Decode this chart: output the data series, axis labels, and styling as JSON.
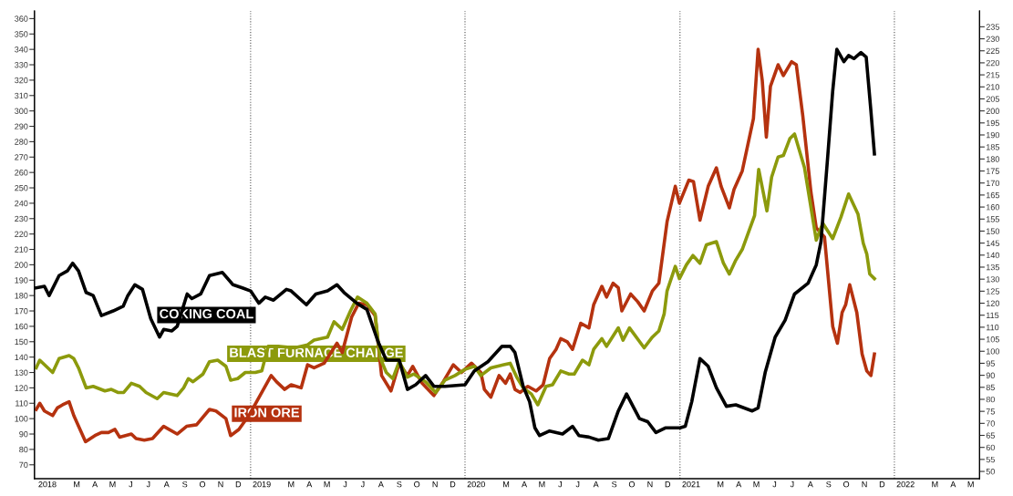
{
  "chart_data": {
    "type": "line",
    "xlim": [
      "2017-12-29",
      "2022-05-26"
    ],
    "xticks": [
      {
        "value": "2018-01-20",
        "label": "2018"
      },
      {
        "value": "2018-03-11",
        "label": "M"
      },
      {
        "value": "2018-04-11",
        "label": "A"
      },
      {
        "value": "2018-05-11",
        "label": "M"
      },
      {
        "value": "2018-06-11",
        "label": "J"
      },
      {
        "value": "2018-07-11",
        "label": "J"
      },
      {
        "value": "2018-08-11",
        "label": "A"
      },
      {
        "value": "2018-09-11",
        "label": "S"
      },
      {
        "value": "2018-10-11",
        "label": "O"
      },
      {
        "value": "2018-11-11",
        "label": "N"
      },
      {
        "value": "2018-12-11",
        "label": "D"
      },
      {
        "value": "2019-01-20",
        "label": "2019"
      },
      {
        "value": "2019-03-11",
        "label": "M"
      },
      {
        "value": "2019-04-11",
        "label": "A"
      },
      {
        "value": "2019-05-11",
        "label": "M"
      },
      {
        "value": "2019-06-11",
        "label": "J"
      },
      {
        "value": "2019-07-11",
        "label": "J"
      },
      {
        "value": "2019-08-11",
        "label": "A"
      },
      {
        "value": "2019-09-11",
        "label": "S"
      },
      {
        "value": "2019-10-11",
        "label": "O"
      },
      {
        "value": "2019-11-11",
        "label": "N"
      },
      {
        "value": "2019-12-11",
        "label": "D"
      },
      {
        "value": "2020-01-20",
        "label": "2020"
      },
      {
        "value": "2020-03-11",
        "label": "M"
      },
      {
        "value": "2020-04-11",
        "label": "A"
      },
      {
        "value": "2020-05-11",
        "label": "M"
      },
      {
        "value": "2020-06-11",
        "label": "J"
      },
      {
        "value": "2020-07-11",
        "label": "J"
      },
      {
        "value": "2020-08-11",
        "label": "A"
      },
      {
        "value": "2020-09-11",
        "label": "S"
      },
      {
        "value": "2020-10-11",
        "label": "O"
      },
      {
        "value": "2020-11-11",
        "label": "N"
      },
      {
        "value": "2020-12-11",
        "label": "D"
      },
      {
        "value": "2021-01-20",
        "label": "2021"
      },
      {
        "value": "2021-03-11",
        "label": "M"
      },
      {
        "value": "2021-04-11",
        "label": "A"
      },
      {
        "value": "2021-05-11",
        "label": "M"
      },
      {
        "value": "2021-06-11",
        "label": "J"
      },
      {
        "value": "2021-07-11",
        "label": "J"
      },
      {
        "value": "2021-08-11",
        "label": "A"
      },
      {
        "value": "2021-09-11",
        "label": "S"
      },
      {
        "value": "2021-10-11",
        "label": "O"
      },
      {
        "value": "2021-11-11",
        "label": "N"
      },
      {
        "value": "2021-12-11",
        "label": "D"
      },
      {
        "value": "2022-01-20",
        "label": "2022"
      },
      {
        "value": "2022-03-11",
        "label": "M"
      },
      {
        "value": "2022-04-11",
        "label": "A"
      },
      {
        "value": "2022-05-11",
        "label": "M"
      }
    ],
    "ylim": [
      61,
      365
    ],
    "yticks": [
      70,
      80,
      90,
      100,
      110,
      120,
      130,
      140,
      150,
      160,
      170,
      180,
      190,
      200,
      210,
      220,
      230,
      240,
      250,
      260,
      270,
      280,
      290,
      300,
      310,
      320,
      330,
      340,
      350,
      360
    ],
    "y2lim": [
      47,
      241.6
    ],
    "y2ticks": [
      50,
      55,
      60,
      65,
      70,
      75,
      80,
      85,
      90,
      95,
      100,
      105,
      110,
      115,
      120,
      125,
      130,
      135,
      140,
      145,
      150,
      155,
      160,
      165,
      170,
      175,
      180,
      185,
      190,
      195,
      200,
      205,
      210,
      215,
      220,
      225,
      230,
      235
    ],
    "grid": false,
    "legend": false,
    "marker": "none",
    "line_style": "solid",
    "ref_lines": [
      {
        "axis": "x",
        "value": "2019-01-01",
        "color": "#555555",
        "line_style": "dotted"
      },
      {
        "axis": "x",
        "value": "2020-01-01",
        "color": "#555555",
        "line_style": "dotted"
      },
      {
        "axis": "x",
        "value": "2021-01-01",
        "color": "#555555",
        "line_style": "dotted"
      },
      {
        "axis": "x",
        "value": "2022-01-01",
        "color": "#555555",
        "line_style": "dotted"
      }
    ],
    "series": [
      {
        "name": "COKING COAL",
        "color": "#000000",
        "x": [
          "2018-01-01",
          "2018-01-15",
          "2018-01-23",
          "2018-02-09",
          "2018-02-23",
          "2018-03-04",
          "2018-03-14",
          "2018-03-27",
          "2018-04-08",
          "2018-04-22",
          "2018-05-12",
          "2018-05-29",
          "2018-06-06",
          "2018-06-18",
          "2018-07-01",
          "2018-07-15",
          "2018-07-30",
          "2018-08-06",
          "2018-08-20",
          "2018-08-29",
          "2018-09-15",
          "2018-09-23",
          "2018-10-08",
          "2018-10-23",
          "2018-11-14",
          "2018-12-02",
          "2018-12-18",
          "2019-01-01",
          "2019-01-15",
          "2019-01-26",
          "2019-02-09",
          "2019-03-03",
          "2019-03-11",
          "2019-04-06",
          "2019-04-22",
          "2019-05-12",
          "2019-05-28",
          "2019-06-09",
          "2019-07-01",
          "2019-07-18",
          "2019-08-06",
          "2019-08-20",
          "2019-09-11",
          "2019-09-25",
          "2019-10-09",
          "2019-10-26",
          "2019-11-09",
          "2019-11-28",
          "2020-01-01",
          "2020-01-17",
          "2020-02-09",
          "2020-03-04",
          "2020-03-18",
          "2020-03-26",
          "2020-04-09",
          "2020-04-20",
          "2020-04-29",
          "2020-05-07",
          "2020-05-24",
          "2020-06-15",
          "2020-07-02",
          "2020-07-13",
          "2020-07-30",
          "2020-08-15",
          "2020-09-01",
          "2020-09-18",
          "2020-10-02",
          "2020-10-24",
          "2020-11-07",
          "2020-11-21",
          "2020-12-07",
          "2021-01-01",
          "2021-01-10",
          "2021-01-21",
          "2021-02-04",
          "2021-02-18",
          "2021-03-04",
          "2021-03-21",
          "2021-04-06",
          "2021-05-04",
          "2021-05-14",
          "2021-05-26",
          "2021-06-12",
          "2021-06-29",
          "2021-07-15",
          "2021-08-07",
          "2021-08-21",
          "2021-08-29",
          "2021-09-09",
          "2021-09-18",
          "2021-09-25",
          "2021-10-07",
          "2021-10-15",
          "2021-10-24",
          "2021-11-05",
          "2021-11-14",
          "2021-11-22",
          "2021-11-28"
        ],
        "values": [
          185,
          186,
          180,
          193,
          196,
          201,
          196,
          182,
          180,
          167,
          170,
          173,
          180,
          187,
          184,
          165,
          153,
          158,
          157,
          160,
          181,
          178,
          181,
          193,
          195,
          187,
          185,
          183,
          175,
          179,
          177,
          184,
          183,
          174,
          181,
          183,
          187,
          182,
          175,
          171,
          150,
          138,
          138,
          119,
          122,
          128,
          121,
          121,
          122,
          131,
          137,
          147,
          147,
          143,
          121,
          111,
          94,
          89,
          92,
          90,
          95,
          89,
          88,
          86,
          87,
          105,
          116,
          100,
          98,
          91,
          94,
          94,
          95,
          111,
          139,
          134,
          120,
          108,
          109,
          105,
          107,
          130,
          153,
          164,
          181,
          188,
          200,
          215,
          268,
          313,
          340,
          332,
          336,
          334,
          338,
          335,
          300,
          272
        ]
      },
      {
        "name": "BLAST FURNACE CHARGE",
        "color": "#8c9a0c",
        "x": [
          "2018-01-01",
          "2018-01-07",
          "2018-01-18",
          "2018-01-29",
          "2018-02-09",
          "2018-02-26",
          "2018-03-06",
          "2018-03-14",
          "2018-03-27",
          "2018-04-08",
          "2018-04-28",
          "2018-05-09",
          "2018-05-20",
          "2018-05-30",
          "2018-06-12",
          "2018-06-26",
          "2018-07-07",
          "2018-07-26",
          "2018-08-06",
          "2018-08-29",
          "2018-09-09",
          "2018-09-17",
          "2018-09-25",
          "2018-10-12",
          "2018-10-23",
          "2018-11-06",
          "2018-11-20",
          "2018-11-28",
          "2018-12-10",
          "2018-12-23",
          "2019-01-09",
          "2019-01-20",
          "2019-01-31",
          "2019-02-17",
          "2019-03-17",
          "2019-04-08",
          "2019-04-19",
          "2019-05-12",
          "2019-05-23",
          "2019-06-06",
          "2019-06-20",
          "2019-07-02",
          "2019-07-18",
          "2019-08-01",
          "2019-08-09",
          "2019-08-20",
          "2019-08-31",
          "2019-09-11",
          "2019-09-25",
          "2019-10-06",
          "2019-10-26",
          "2019-11-12",
          "2019-11-28",
          "2019-12-15",
          "2020-01-01",
          "2020-01-17",
          "2020-01-28",
          "2020-02-14",
          "2020-03-07",
          "2020-03-18",
          "2020-03-29",
          "2020-04-09",
          "2020-04-23",
          "2020-05-04",
          "2020-05-18",
          "2020-05-29",
          "2020-06-12",
          "2020-06-26",
          "2020-07-05",
          "2020-07-19",
          "2020-07-30",
          "2020-08-07",
          "2020-08-21",
          "2020-08-29",
          "2020-09-18",
          "2020-09-26",
          "2020-10-07",
          "2020-11-01",
          "2020-11-15",
          "2020-11-26",
          "2020-12-05",
          "2020-12-10",
          "2020-12-24",
          "2020-12-31",
          "2021-01-12",
          "2021-01-23",
          "2021-02-04",
          "2021-02-15",
          "2021-03-04",
          "2021-03-16",
          "2021-03-26",
          "2021-04-06",
          "2021-04-17",
          "2021-05-08",
          "2021-05-15",
          "2021-05-29",
          "2021-06-06",
          "2021-06-17",
          "2021-06-26",
          "2021-07-07",
          "2021-07-15",
          "2021-08-01",
          "2021-08-21",
          "2021-09-01",
          "2021-09-18",
          "2021-10-02",
          "2021-10-15",
          "2021-10-31",
          "2021-11-09",
          "2021-11-15",
          "2021-11-20",
          "2021-11-28"
        ],
        "values": [
          133,
          138,
          134,
          130,
          139,
          141,
          139,
          133,
          120,
          121,
          118,
          119,
          117,
          117,
          123,
          121,
          117,
          113,
          117,
          115,
          120,
          126,
          124,
          129,
          137,
          138,
          134,
          125,
          126,
          130,
          130,
          131,
          147,
          147,
          146,
          148,
          151,
          153,
          163,
          158,
          170,
          179,
          175,
          168,
          140,
          130,
          126,
          137,
          127,
          129,
          124,
          117,
          125,
          128,
          132,
          134,
          128,
          133,
          135,
          136,
          127,
          120,
          116,
          109,
          121,
          122,
          131,
          129,
          129,
          138,
          135,
          145,
          152,
          147,
          159,
          151,
          159,
          146,
          153,
          157,
          168,
          183,
          199,
          191,
          200,
          206,
          201,
          213,
          215,
          201,
          194,
          203,
          210,
          232,
          262,
          235,
          257,
          270,
          271,
          282,
          285,
          263,
          216,
          227,
          217,
          231,
          246,
          233,
          214,
          207,
          194,
          191
        ]
      },
      {
        "name": "IRON ORE",
        "color": "#b5320f",
        "x": [
          "2018-01-01",
          "2018-01-07",
          "2018-01-15",
          "2018-01-29",
          "2018-02-06",
          "2018-02-15",
          "2018-02-26",
          "2018-03-06",
          "2018-03-26",
          "2018-04-11",
          "2018-04-22",
          "2018-05-04",
          "2018-05-15",
          "2018-05-23",
          "2018-06-12",
          "2018-06-20",
          "2018-07-04",
          "2018-07-18",
          "2018-08-06",
          "2018-08-29",
          "2018-09-14",
          "2018-10-01",
          "2018-10-23",
          "2018-11-03",
          "2018-11-20",
          "2018-11-28",
          "2018-12-12",
          "2018-12-29",
          "2019-02-05",
          "2019-02-14",
          "2019-02-28",
          "2019-03-11",
          "2019-03-28",
          "2019-04-08",
          "2019-04-19",
          "2019-05-06",
          "2019-05-28",
          "2019-06-06",
          "2019-06-22",
          "2019-07-04",
          "2019-07-18",
          "2019-08-01",
          "2019-08-12",
          "2019-08-28",
          "2019-09-11",
          "2019-09-25",
          "2019-10-04",
          "2019-10-20",
          "2019-11-09",
          "2019-11-25",
          "2019-12-12",
          "2019-12-26",
          "2020-01-12",
          "2020-01-28",
          "2020-02-03",
          "2020-02-14",
          "2020-02-28",
          "2020-03-10",
          "2020-03-18",
          "2020-03-26",
          "2020-04-04",
          "2020-04-17",
          "2020-05-01",
          "2020-05-13",
          "2020-05-24",
          "2020-06-04",
          "2020-06-12",
          "2020-06-23",
          "2020-07-02",
          "2020-07-16",
          "2020-07-30",
          "2020-08-07",
          "2020-08-21",
          "2020-08-29",
          "2020-09-09",
          "2020-09-18",
          "2020-09-24",
          "2020-10-09",
          "2020-10-21",
          "2020-11-01",
          "2020-11-15",
          "2020-11-26",
          "2020-12-10",
          "2020-12-24",
          "2020-12-31",
          "2021-01-16",
          "2021-01-24",
          "2021-02-04",
          "2021-02-18",
          "2021-03-04",
          "2021-03-12",
          "2021-03-26",
          "2021-04-03",
          "2021-04-17",
          "2021-05-06",
          "2021-05-14",
          "2021-05-21",
          "2021-05-28",
          "2021-06-04",
          "2021-06-17",
          "2021-06-26",
          "2021-07-10",
          "2021-07-18",
          "2021-07-29",
          "2021-08-12",
          "2021-08-21",
          "2021-09-04",
          "2021-09-18",
          "2021-09-26",
          "2021-10-04",
          "2021-10-10",
          "2021-10-17",
          "2021-10-29",
          "2021-11-07",
          "2021-11-15",
          "2021-11-22",
          "2021-11-28"
        ],
        "values": [
          106,
          110,
          105,
          102,
          107,
          109,
          111,
          102,
          85,
          89,
          91,
          91,
          93,
          88,
          90,
          87,
          86,
          87,
          95,
          90,
          95,
          96,
          106,
          105,
          100,
          89,
          93,
          102,
          128,
          124,
          119,
          122,
          120,
          135,
          133,
          136,
          149,
          143,
          166,
          175,
          174,
          167,
          128,
          118,
          136,
          128,
          134,
          123,
          115,
          124,
          135,
          130,
          136,
          130,
          119,
          114,
          128,
          123,
          129,
          119,
          117,
          121,
          118,
          122,
          139,
          145,
          152,
          150,
          145,
          162,
          159,
          174,
          186,
          179,
          188,
          185,
          170,
          181,
          176,
          170,
          183,
          188,
          228,
          251,
          240,
          255,
          254,
          229,
          251,
          263,
          251,
          237,
          249,
          261,
          295,
          340,
          320,
          283,
          316,
          330,
          323,
          332,
          330,
          297,
          247,
          224,
          218,
          160,
          149,
          169,
          174,
          187,
          169,
          142,
          131,
          128,
          142
        ]
      }
    ]
  }
}
